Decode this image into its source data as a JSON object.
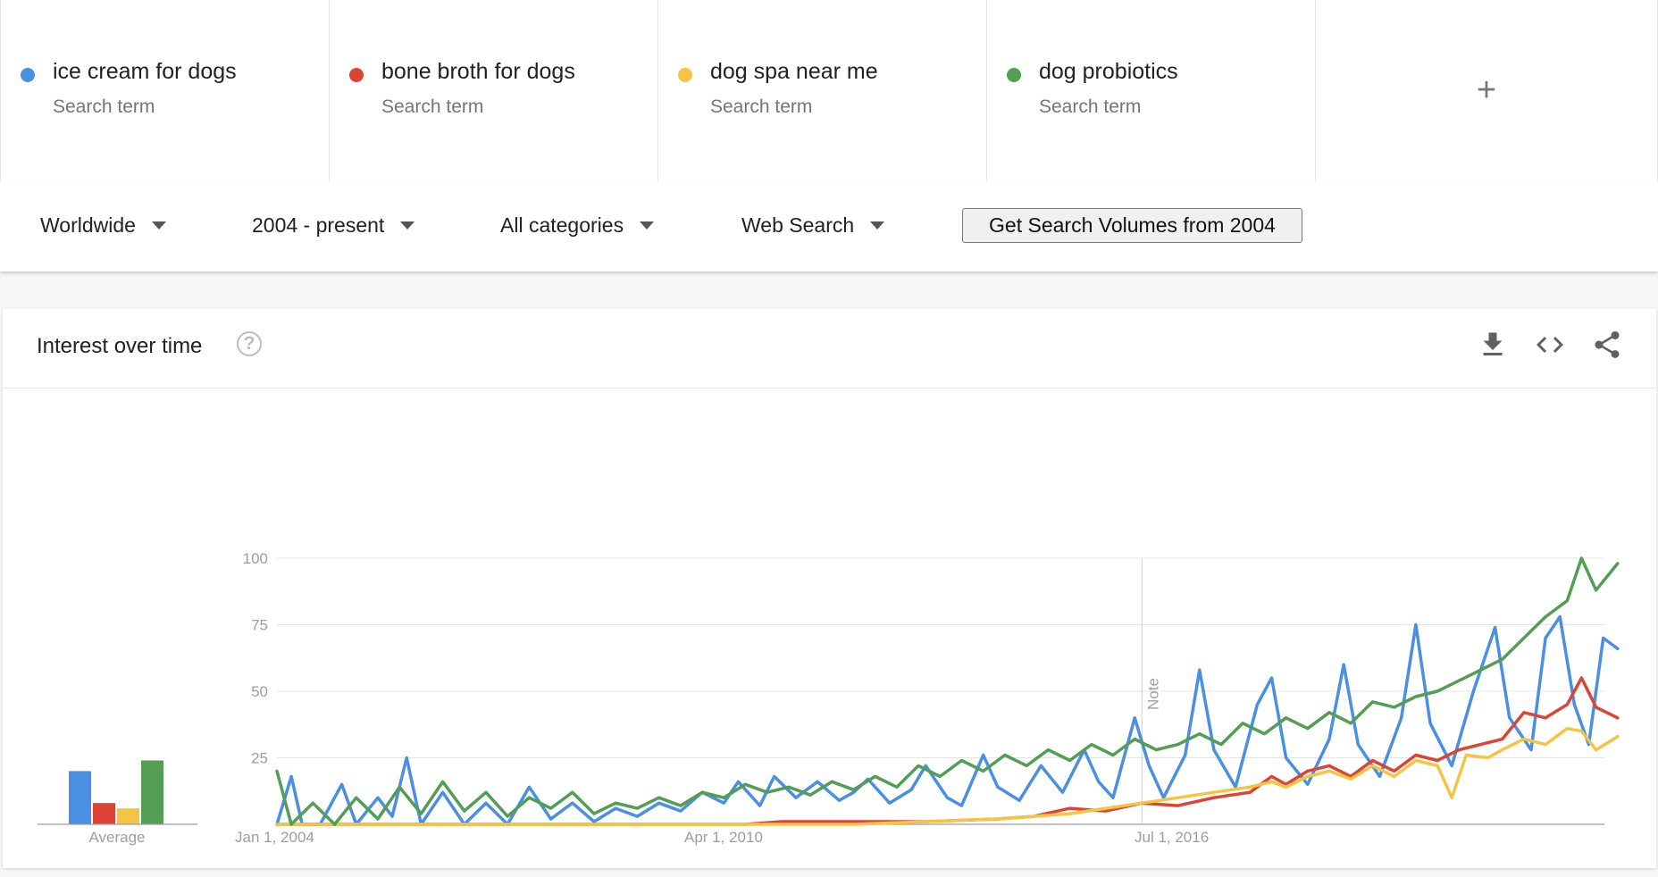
{
  "terms": [
    {
      "name": "ice cream for dogs",
      "sub": "Search term",
      "color": "#4a8fe1"
    },
    {
      "name": "bone broth for dogs",
      "sub": "Search term",
      "color": "#db4437"
    },
    {
      "name": "dog spa near me",
      "sub": "Search term",
      "color": "#f4c542"
    },
    {
      "name": "dog probiotics",
      "sub": "Search term",
      "color": "#539d54"
    }
  ],
  "add_icon": "+",
  "filters": {
    "region": "Worldwide",
    "time": "2004 - present",
    "category": "All categories",
    "search_type": "Web Search"
  },
  "volume_button": "Get Search Volumes from 2004",
  "card": {
    "title": "Interest over time",
    "help": "?",
    "icons": [
      "download-icon",
      "embed-code-icon",
      "share-icon"
    ]
  },
  "chart_data": {
    "type": "line",
    "ylim": [
      0,
      100
    ],
    "yticks": [
      25,
      50,
      75,
      100
    ],
    "x_tick_labels": [
      "Jan 1, 2004",
      "Apr 1, 2010",
      "Jul 1, 2016"
    ],
    "x_range": [
      "2004-01",
      "2022-06"
    ],
    "note_label": "Note",
    "note_at": "2016-01",
    "average_label": "Average",
    "averages": [
      20,
      8,
      6,
      24
    ],
    "series": [
      {
        "name": "ice cream for dogs",
        "color": "#4a8fe1",
        "points": [
          [
            2004.0,
            0
          ],
          [
            2004.2,
            18
          ],
          [
            2004.35,
            0
          ],
          [
            2004.6,
            0
          ],
          [
            2004.9,
            15
          ],
          [
            2005.1,
            0
          ],
          [
            2005.4,
            10
          ],
          [
            2005.6,
            3
          ],
          [
            2005.8,
            25
          ],
          [
            2006.0,
            0
          ],
          [
            2006.3,
            12
          ],
          [
            2006.6,
            0
          ],
          [
            2006.9,
            8
          ],
          [
            2007.2,
            0
          ],
          [
            2007.5,
            14
          ],
          [
            2007.8,
            2
          ],
          [
            2008.1,
            8
          ],
          [
            2008.4,
            1
          ],
          [
            2008.7,
            6
          ],
          [
            2009.0,
            3
          ],
          [
            2009.3,
            8
          ],
          [
            2009.6,
            5
          ],
          [
            2009.9,
            12
          ],
          [
            2010.2,
            8
          ],
          [
            2010.4,
            16
          ],
          [
            2010.7,
            7
          ],
          [
            2010.9,
            18
          ],
          [
            2011.2,
            10
          ],
          [
            2011.5,
            16
          ],
          [
            2011.8,
            9
          ],
          [
            2012.0,
            12
          ],
          [
            2012.2,
            17
          ],
          [
            2012.5,
            8
          ],
          [
            2012.8,
            13
          ],
          [
            2013.0,
            22
          ],
          [
            2013.3,
            10
          ],
          [
            2013.5,
            7
          ],
          [
            2013.8,
            26
          ],
          [
            2014.0,
            14
          ],
          [
            2014.3,
            9
          ],
          [
            2014.6,
            22
          ],
          [
            2014.9,
            12
          ],
          [
            2015.2,
            28
          ],
          [
            2015.4,
            16
          ],
          [
            2015.6,
            10
          ],
          [
            2015.9,
            40
          ],
          [
            2016.1,
            22
          ],
          [
            2016.3,
            10
          ],
          [
            2016.6,
            26
          ],
          [
            2016.8,
            58
          ],
          [
            2017.0,
            28
          ],
          [
            2017.3,
            14
          ],
          [
            2017.6,
            45
          ],
          [
            2017.8,
            55
          ],
          [
            2018.0,
            25
          ],
          [
            2018.3,
            15
          ],
          [
            2018.6,
            32
          ],
          [
            2018.8,
            60
          ],
          [
            2019.0,
            30
          ],
          [
            2019.3,
            18
          ],
          [
            2019.6,
            40
          ],
          [
            2019.8,
            75
          ],
          [
            2020.0,
            38
          ],
          [
            2020.3,
            22
          ],
          [
            2020.6,
            50
          ],
          [
            2020.9,
            74
          ],
          [
            2021.1,
            40
          ],
          [
            2021.4,
            28
          ],
          [
            2021.6,
            70
          ],
          [
            2021.8,
            78
          ],
          [
            2022.0,
            45
          ],
          [
            2022.2,
            30
          ],
          [
            2022.4,
            70
          ],
          [
            2022.6,
            66
          ]
        ]
      },
      {
        "name": "bone broth for dogs",
        "color": "#db4437",
        "points": [
          [
            2004.0,
            0
          ],
          [
            2010.5,
            0
          ],
          [
            2011.0,
            1
          ],
          [
            2013.0,
            1
          ],
          [
            2014.0,
            2
          ],
          [
            2014.5,
            3
          ],
          [
            2015.0,
            6
          ],
          [
            2015.5,
            5
          ],
          [
            2016.0,
            8
          ],
          [
            2016.5,
            7
          ],
          [
            2017.0,
            10
          ],
          [
            2017.5,
            12
          ],
          [
            2017.8,
            18
          ],
          [
            2018.0,
            15
          ],
          [
            2018.3,
            20
          ],
          [
            2018.6,
            22
          ],
          [
            2018.9,
            18
          ],
          [
            2019.2,
            24
          ],
          [
            2019.5,
            20
          ],
          [
            2019.8,
            26
          ],
          [
            2020.1,
            24
          ],
          [
            2020.4,
            28
          ],
          [
            2020.7,
            30
          ],
          [
            2021.0,
            32
          ],
          [
            2021.3,
            42
          ],
          [
            2021.6,
            40
          ],
          [
            2021.9,
            45
          ],
          [
            2022.1,
            55
          ],
          [
            2022.3,
            44
          ],
          [
            2022.6,
            40
          ]
        ]
      },
      {
        "name": "dog spa near me",
        "color": "#f4c542",
        "points": [
          [
            2004.0,
            0
          ],
          [
            2012.0,
            0
          ],
          [
            2013.0,
            1
          ],
          [
            2014.0,
            2
          ],
          [
            2014.5,
            3
          ],
          [
            2015.0,
            4
          ],
          [
            2015.5,
            6
          ],
          [
            2016.0,
            8
          ],
          [
            2016.5,
            10
          ],
          [
            2017.0,
            12
          ],
          [
            2017.5,
            14
          ],
          [
            2017.8,
            16
          ],
          [
            2018.0,
            14
          ],
          [
            2018.3,
            18
          ],
          [
            2018.6,
            20
          ],
          [
            2018.9,
            17
          ],
          [
            2019.2,
            22
          ],
          [
            2019.5,
            18
          ],
          [
            2019.8,
            24
          ],
          [
            2020.1,
            22
          ],
          [
            2020.3,
            10
          ],
          [
            2020.5,
            26
          ],
          [
            2020.8,
            25
          ],
          [
            2021.0,
            28
          ],
          [
            2021.3,
            32
          ],
          [
            2021.6,
            30
          ],
          [
            2021.9,
            36
          ],
          [
            2022.1,
            35
          ],
          [
            2022.3,
            28
          ],
          [
            2022.6,
            33
          ]
        ]
      },
      {
        "name": "dog probiotics",
        "color": "#539d54",
        "points": [
          [
            2004.0,
            20
          ],
          [
            2004.2,
            0
          ],
          [
            2004.5,
            8
          ],
          [
            2004.8,
            0
          ],
          [
            2005.1,
            10
          ],
          [
            2005.4,
            2
          ],
          [
            2005.7,
            14
          ],
          [
            2006.0,
            4
          ],
          [
            2006.3,
            16
          ],
          [
            2006.6,
            5
          ],
          [
            2006.9,
            12
          ],
          [
            2007.2,
            3
          ],
          [
            2007.5,
            10
          ],
          [
            2007.8,
            6
          ],
          [
            2008.1,
            12
          ],
          [
            2008.4,
            4
          ],
          [
            2008.7,
            8
          ],
          [
            2009.0,
            6
          ],
          [
            2009.3,
            10
          ],
          [
            2009.6,
            7
          ],
          [
            2009.9,
            12
          ],
          [
            2010.2,
            10
          ],
          [
            2010.5,
            15
          ],
          [
            2010.8,
            12
          ],
          [
            2011.1,
            14
          ],
          [
            2011.4,
            11
          ],
          [
            2011.7,
            16
          ],
          [
            2012.0,
            13
          ],
          [
            2012.3,
            18
          ],
          [
            2012.6,
            14
          ],
          [
            2012.9,
            22
          ],
          [
            2013.2,
            18
          ],
          [
            2013.5,
            24
          ],
          [
            2013.8,
            20
          ],
          [
            2014.1,
            26
          ],
          [
            2014.4,
            22
          ],
          [
            2014.7,
            28
          ],
          [
            2015.0,
            24
          ],
          [
            2015.3,
            30
          ],
          [
            2015.6,
            26
          ],
          [
            2015.9,
            32
          ],
          [
            2016.2,
            28
          ],
          [
            2016.5,
            30
          ],
          [
            2016.8,
            34
          ],
          [
            2017.1,
            30
          ],
          [
            2017.4,
            38
          ],
          [
            2017.7,
            34
          ],
          [
            2018.0,
            40
          ],
          [
            2018.3,
            36
          ],
          [
            2018.6,
            42
          ],
          [
            2018.9,
            38
          ],
          [
            2019.2,
            46
          ],
          [
            2019.5,
            44
          ],
          [
            2019.8,
            48
          ],
          [
            2020.1,
            50
          ],
          [
            2020.4,
            54
          ],
          [
            2020.7,
            58
          ],
          [
            2021.0,
            62
          ],
          [
            2021.3,
            70
          ],
          [
            2021.6,
            78
          ],
          [
            2021.9,
            84
          ],
          [
            2022.1,
            100
          ],
          [
            2022.3,
            88
          ],
          [
            2022.6,
            98
          ]
        ]
      }
    ]
  }
}
